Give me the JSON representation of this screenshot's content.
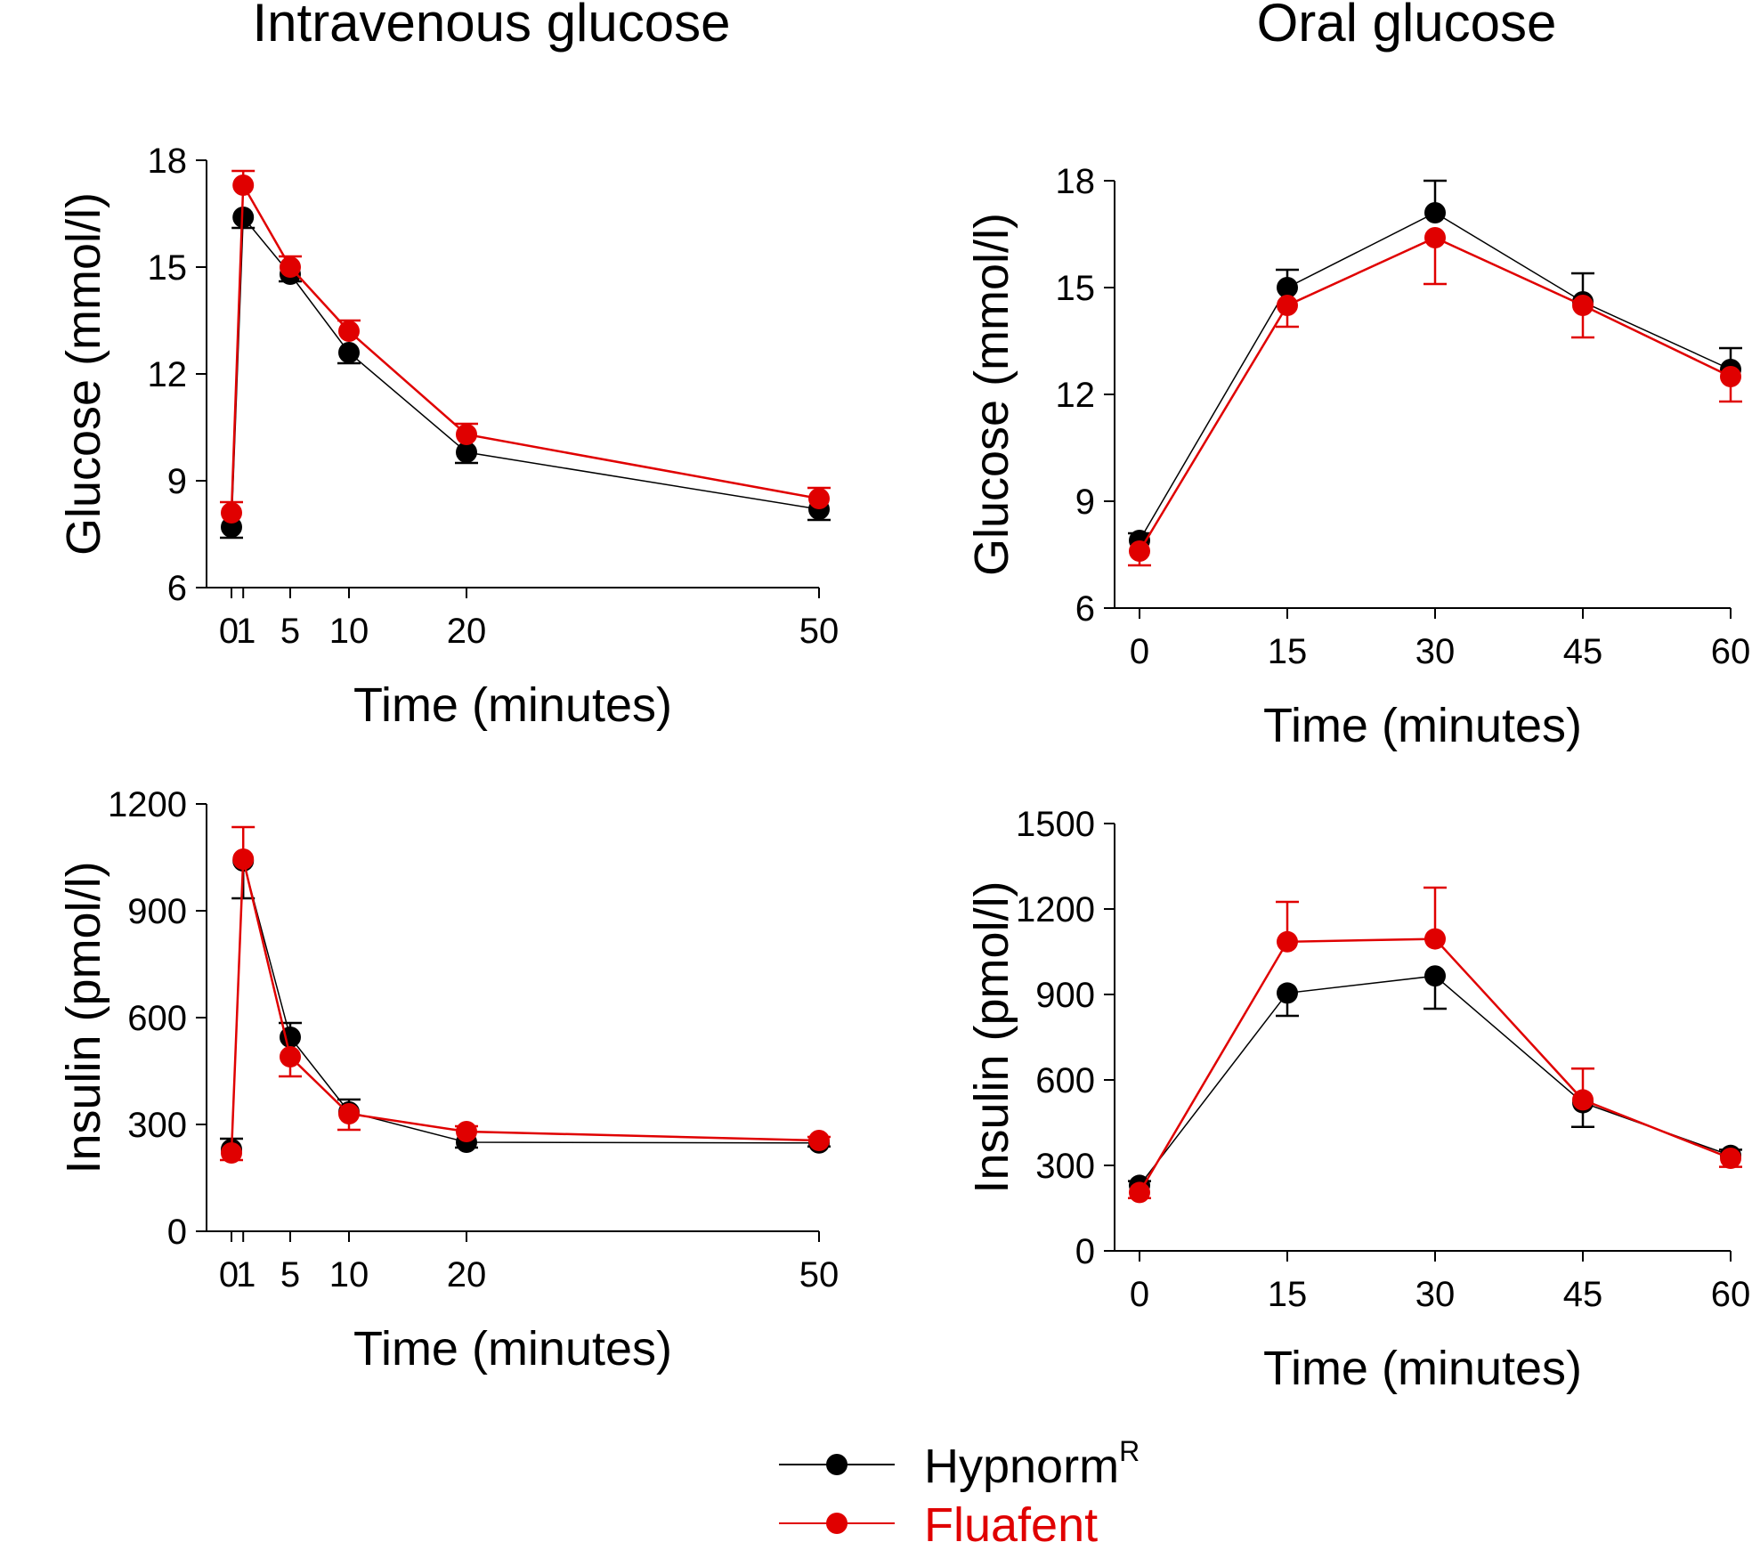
{
  "column_titles": [
    "Intravenous glucose",
    "Oral glucose"
  ],
  "legend": {
    "items": [
      {
        "label": "Hypnorm",
        "superscript": "R",
        "color": "#000000"
      },
      {
        "label": "Fluafent",
        "superscript": "",
        "color": "#e00000"
      }
    ]
  },
  "chart_data": [
    {
      "type": "line",
      "panel": "iv-glucose",
      "column": 0,
      "row": 0,
      "xlabel": "Time (minutes)",
      "ylabel": "Glucose (mmol/l)",
      "x": [
        0,
        1,
        5,
        10,
        20,
        50
      ],
      "xticks": [
        0,
        1,
        5,
        10,
        20,
        50
      ],
      "xtick_labels": [
        "0",
        "1",
        "5",
        "10",
        "20",
        "50"
      ],
      "xlim": [
        0,
        50
      ],
      "yticks": [
        6,
        9,
        12,
        15,
        18
      ],
      "ylim": [
        6,
        18
      ],
      "series": [
        {
          "name": "Hypnorm",
          "color": "#000000",
          "values": [
            7.7,
            16.4,
            14.8,
            12.6,
            9.8,
            8.2
          ],
          "err": [
            0.3,
            0.3,
            0.2,
            0.3,
            0.3,
            0.3
          ]
        },
        {
          "name": "Fluafent",
          "color": "#e00000",
          "values": [
            8.1,
            17.3,
            15.0,
            13.2,
            10.3,
            8.5
          ],
          "err": [
            0.3,
            0.4,
            0.3,
            0.3,
            0.3,
            0.3
          ]
        }
      ]
    },
    {
      "type": "line",
      "panel": "oral-glucose",
      "column": 1,
      "row": 0,
      "xlabel": "Time (minutes)",
      "ylabel": "Glucose (mmol/l)",
      "x": [
        0,
        15,
        30,
        45,
        60
      ],
      "xticks": [
        0,
        15,
        30,
        45,
        60
      ],
      "xtick_labels": [
        "0",
        "15",
        "30",
        "45",
        "60"
      ],
      "xlim": [
        0,
        60
      ],
      "yticks": [
        6,
        9,
        12,
        15,
        18
      ],
      "ylim": [
        6,
        18
      ],
      "series": [
        {
          "name": "Hypnorm",
          "color": "#000000",
          "values": [
            7.9,
            15.0,
            17.1,
            14.6,
            12.7
          ],
          "err": [
            0.2,
            0.5,
            0.9,
            0.8,
            0.6
          ]
        },
        {
          "name": "Fluafent",
          "color": "#e00000",
          "values": [
            7.6,
            14.5,
            16.4,
            14.5,
            12.5
          ],
          "err": [
            0.4,
            0.6,
            1.3,
            0.9,
            0.7
          ]
        }
      ]
    },
    {
      "type": "line",
      "panel": "iv-insulin",
      "column": 0,
      "row": 1,
      "xlabel": "Time (minutes)",
      "ylabel": "Insulin (pmol/l)",
      "x": [
        0,
        1,
        5,
        10,
        20,
        50
      ],
      "xticks": [
        0,
        1,
        5,
        10,
        20,
        50
      ],
      "xtick_labels": [
        "0",
        "1",
        "5",
        "10",
        "20",
        "50"
      ],
      "xlim": [
        0,
        50
      ],
      "yticks": [
        0,
        300,
        600,
        900,
        1200
      ],
      "ylim": [
        0,
        1200
      ],
      "series": [
        {
          "name": "Hypnorm",
          "color": "#000000",
          "values": [
            230,
            1040,
            545,
            335,
            250,
            248
          ],
          "err": [
            30,
            105,
            40,
            35,
            15,
            10
          ]
        },
        {
          "name": "Fluafent",
          "color": "#e00000",
          "values": [
            220,
            1045,
            490,
            330,
            280,
            255
          ],
          "err": [
            20,
            90,
            55,
            45,
            15,
            10
          ]
        }
      ]
    },
    {
      "type": "line",
      "panel": "oral-insulin",
      "column": 1,
      "row": 1,
      "xlabel": "Time (minutes)",
      "ylabel": "Insulin (pmol/l)",
      "x": [
        0,
        15,
        30,
        45,
        60
      ],
      "xticks": [
        0,
        15,
        30,
        45,
        60
      ],
      "xtick_labels": [
        "0",
        "15",
        "30",
        "45",
        "60"
      ],
      "xlim": [
        0,
        60
      ],
      "yticks": [
        0,
        300,
        600,
        900,
        1200,
        1500
      ],
      "ylim": [
        0,
        1500
      ],
      "series": [
        {
          "name": "Hypnorm",
          "color": "#000000",
          "values": [
            230,
            905,
            965,
            520,
            335
          ],
          "err": [
            15,
            80,
            115,
            85,
            20
          ]
        },
        {
          "name": "Fluafent",
          "color": "#e00000",
          "values": [
            205,
            1085,
            1095,
            530,
            325
          ],
          "err": [
            20,
            140,
            180,
            110,
            30
          ]
        }
      ]
    }
  ]
}
